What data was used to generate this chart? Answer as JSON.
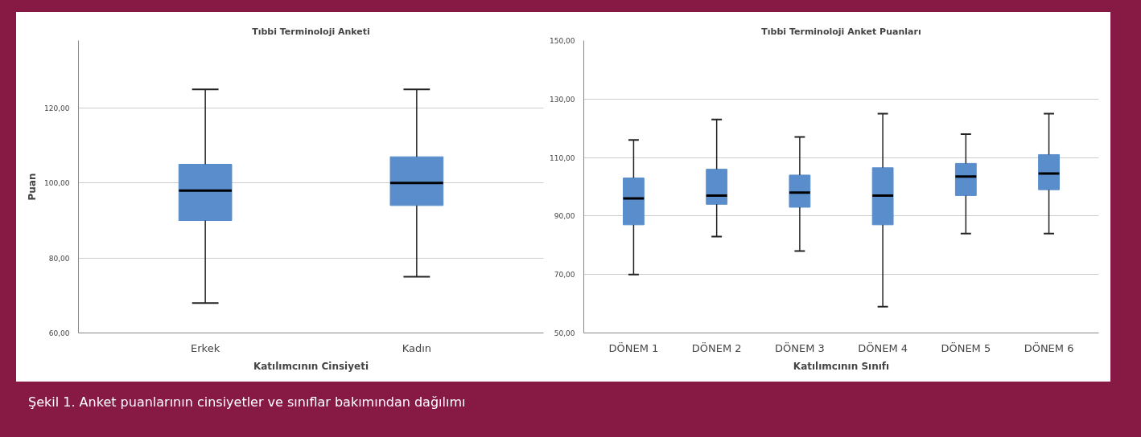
{
  "chart_data": [
    {
      "type": "box",
      "title": "Tıbbi Terminoloji Anketi",
      "xlabel": "Katılımcının Cinsiyeti",
      "ylabel": "Puan",
      "categories": [
        "Erkek",
        "Kadın"
      ],
      "color": "#5a8dcb",
      "boxes": [
        {
          "low": 68,
          "q1": 90,
          "median": 98,
          "q3": 105,
          "high": 125
        },
        {
          "low": 75,
          "q1": 94,
          "median": 100,
          "q3": 107,
          "high": 125
        }
      ],
      "ylim": [
        60,
        138
      ],
      "yticks": [
        {
          "value": 60,
          "label": "60,00"
        },
        {
          "value": 80,
          "label": "80,00"
        },
        {
          "value": 100,
          "label": "100,00"
        },
        {
          "value": 120,
          "label": "120,00"
        }
      ],
      "grid": "y",
      "annotations": [
        "Şekil 1. Anket puanlarının cinsiyetler ve sınıflar bakımından dağılımı"
      ]
    },
    {
      "type": "box",
      "title": "Tıbbi Terminoloji Anket Puanları",
      "xlabel": "Katılımcının Sınıfı",
      "categories": [
        "DÖNEM 1",
        "DÖNEM 2",
        "DÖNEM 3",
        "DÖNEM 4",
        "DÖNEM 5",
        "DÖNEM 6"
      ],
      "color": "#5a8dcb",
      "boxes": [
        {
          "low": 70,
          "q1": 87,
          "median": 96,
          "q3": 103,
          "high": 116
        },
        {
          "low": 83,
          "q1": 94,
          "median": 97,
          "q3": 106,
          "high": 123
        },
        {
          "low": 78,
          "q1": 93,
          "median": 98,
          "q3": 104,
          "high": 117
        },
        {
          "low": 59,
          "q1": 87,
          "median": 97,
          "q3": 106.5,
          "high": 125
        },
        {
          "low": 84,
          "q1": 97,
          "median": 103.5,
          "q3": 108,
          "high": 118
        },
        {
          "low": 84,
          "q1": 99,
          "median": 104.5,
          "q3": 111,
          "high": 125
        }
      ],
      "ylim": [
        50,
        150
      ],
      "yticks": [
        {
          "value": 50,
          "label": "50,00"
        },
        {
          "value": 70,
          "label": "70,00"
        },
        {
          "value": 90,
          "label": "90,00"
        },
        {
          "value": 110,
          "label": "110,00"
        },
        {
          "value": 130,
          "label": "130,00"
        },
        {
          "value": 150,
          "label": "150,00"
        }
      ],
      "grid": "y"
    }
  ]
}
